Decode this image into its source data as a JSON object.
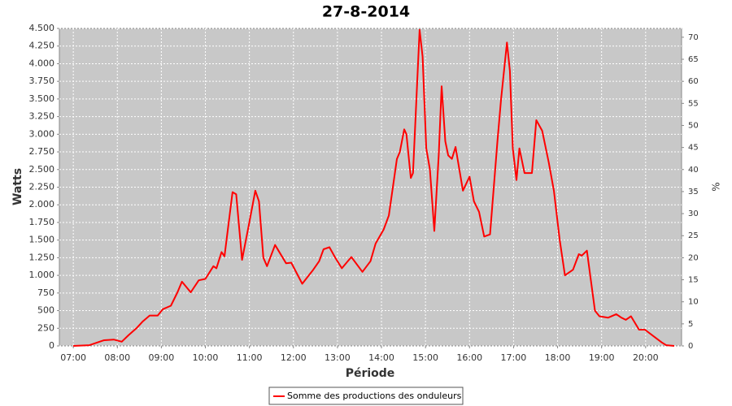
{
  "chart_data": {
    "type": "line",
    "title": "27-8-2014",
    "x_label": "Période",
    "y_label": "Watts",
    "y2_label": "%",
    "x": [
      "07:00",
      "07:22",
      "07:42",
      "07:55",
      "08:06",
      "08:15",
      "08:26",
      "08:35",
      "08:44",
      "08:55",
      "09:02",
      "09:13",
      "09:22",
      "09:28",
      "09:40",
      "09:51",
      "10:00",
      "10:11",
      "10:15",
      "10:22",
      "10:26",
      "10:37",
      "10:42",
      "10:50",
      "10:59",
      "11:08",
      "11:13",
      "11:19",
      "11:24",
      "11:35",
      "11:50",
      "11:57",
      "12:12",
      "12:27",
      "12:35",
      "12:41",
      "12:49",
      "12:57",
      "13:06",
      "13:19",
      "13:34",
      "13:45",
      "13:52",
      "14:03",
      "14:10",
      "14:21",
      "14:25",
      "14:31",
      "14:34",
      "14:40",
      "14:43",
      "14:52",
      "14:56",
      "15:01",
      "15:06",
      "15:12",
      "15:18",
      "15:22",
      "15:27",
      "15:31",
      "15:36",
      "15:41",
      "15:51",
      "16:00",
      "16:06",
      "16:13",
      "16:20",
      "16:28",
      "16:38",
      "16:43",
      "16:51",
      "16:55",
      "16:59",
      "17:04",
      "17:08",
      "17:15",
      "17:25",
      "17:31",
      "17:39",
      "17:48",
      "17:55",
      "18:03",
      "18:10",
      "18:21",
      "18:29",
      "18:33",
      "18:40",
      "18:51",
      "18:57",
      "19:09",
      "19:20",
      "19:27",
      "19:33",
      "19:40",
      "19:51",
      "19:59",
      "20:13",
      "20:22",
      "20:28",
      "20:39"
    ],
    "series": [
      {
        "name": "Somme des productions des onduleurs",
        "color": "#ff0000",
        "values": [
          0,
          10,
          80,
          90,
          60,
          150,
          250,
          350,
          430,
          430,
          520,
          570,
          760,
          910,
          760,
          930,
          950,
          1130,
          1100,
          1330,
          1270,
          2180,
          2150,
          1220,
          1700,
          2200,
          2050,
          1250,
          1130,
          1430,
          1170,
          1180,
          880,
          1080,
          1200,
          1370,
          1400,
          1250,
          1100,
          1260,
          1050,
          1200,
          1450,
          1650,
          1850,
          2650,
          2750,
          3070,
          3000,
          2380,
          2450,
          4480,
          4100,
          2800,
          2500,
          1630,
          2700,
          3680,
          2900,
          2700,
          2650,
          2820,
          2200,
          2400,
          2050,
          1900,
          1550,
          1580,
          2900,
          3500,
          4300,
          3900,
          2800,
          2350,
          2800,
          2450,
          2450,
          3200,
          3050,
          2600,
          2200,
          1500,
          1000,
          1080,
          1300,
          1280,
          1350,
          500,
          420,
          400,
          450,
          400,
          370,
          420,
          230,
          230,
          120,
          50,
          10,
          0
        ]
      }
    ],
    "xlim": [
      "06:41",
      "20:49"
    ],
    "xticks": [
      "07:00",
      "08:00",
      "09:00",
      "10:00",
      "11:00",
      "12:00",
      "13:00",
      "14:00",
      "15:00",
      "16:00",
      "17:00",
      "18:00",
      "19:00",
      "20:00"
    ],
    "ylim": [
      0,
      4500
    ],
    "yticks": [
      0,
      250,
      500,
      750,
      {
        "value": 1000,
        "label": "1.000"
      },
      {
        "value": 1250,
        "label": "1.250"
      },
      {
        "value": 1500,
        "label": "1.500"
      },
      {
        "value": 1750,
        "label": "1.750"
      },
      {
        "value": 2000,
        "label": "2.000"
      },
      {
        "value": 2250,
        "label": "2.250"
      },
      {
        "value": 2500,
        "label": "2.500"
      },
      {
        "value": 2750,
        "label": "2.750"
      },
      {
        "value": 3000,
        "label": "3.000"
      },
      {
        "value": 3250,
        "label": "3.250"
      },
      {
        "value": 3500,
        "label": "3.500"
      },
      {
        "value": 3750,
        "label": "3.750"
      },
      {
        "value": 4000,
        "label": "4.000"
      },
      {
        "value": 4250,
        "label": "4.250"
      },
      {
        "value": 4500,
        "label": "4.500"
      }
    ],
    "y2lim": [
      0,
      72
    ],
    "y2ticks": [
      0,
      5,
      10,
      15,
      20,
      25,
      30,
      35,
      40,
      45,
      50,
      55,
      60,
      65,
      70
    ],
    "grid": true,
    "legend": "bottom"
  }
}
